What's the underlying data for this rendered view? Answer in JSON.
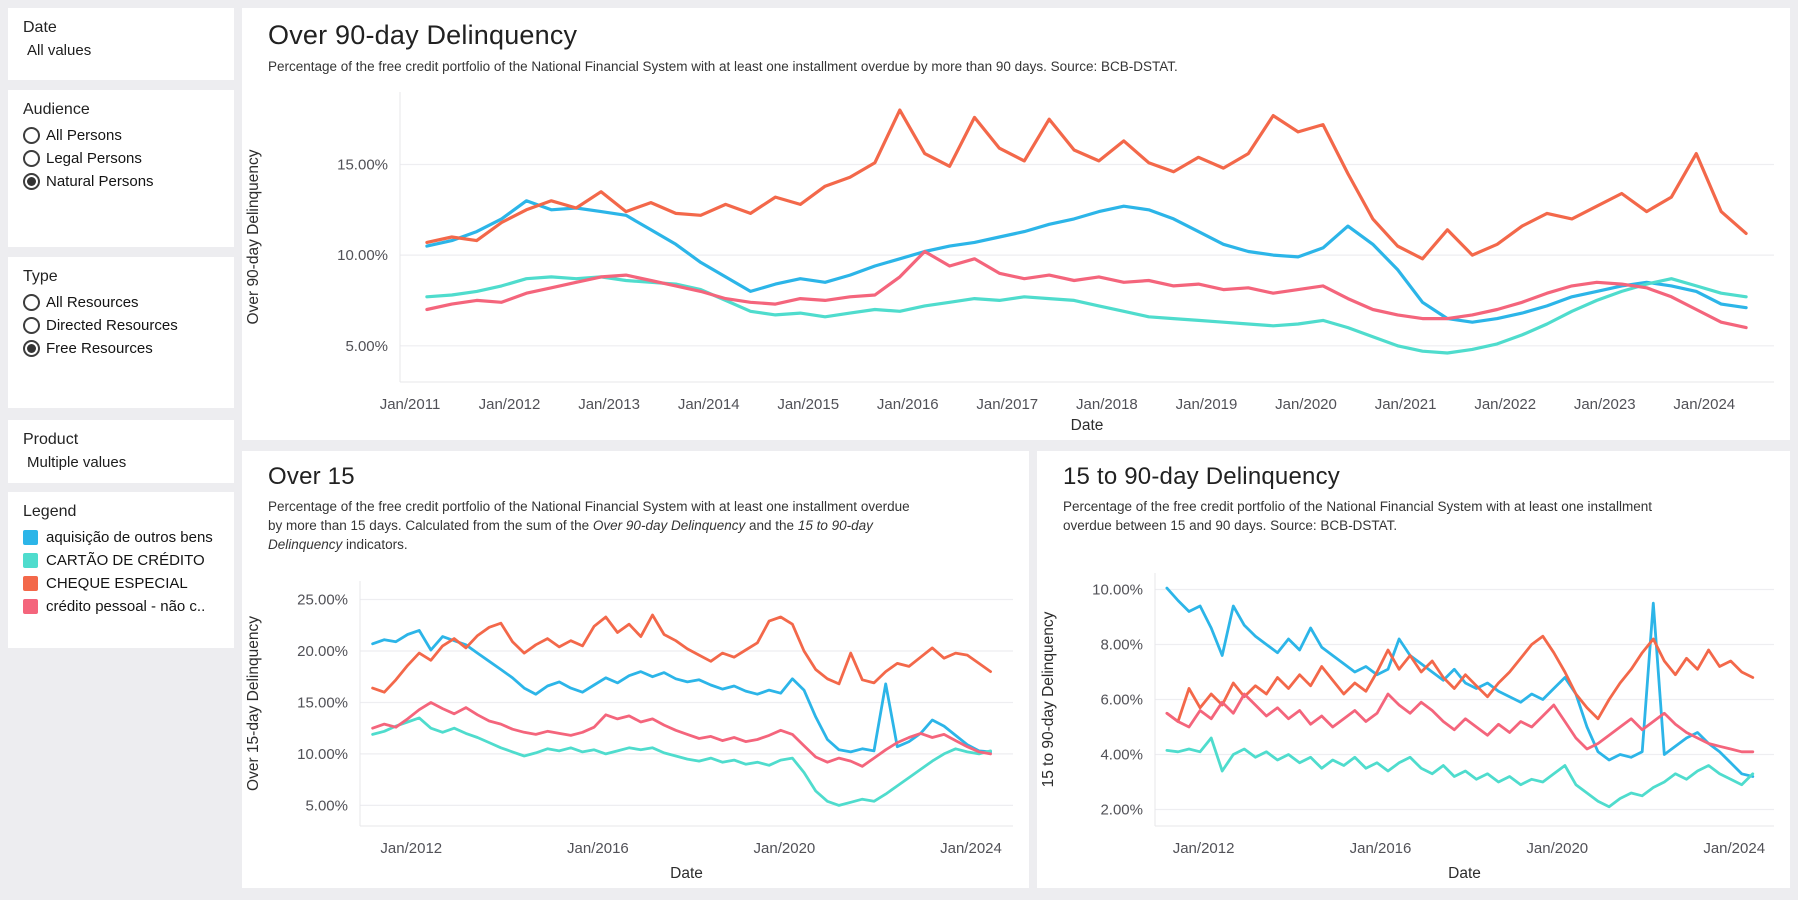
{
  "sidebar": {
    "date": {
      "title": "Date",
      "value": "All values"
    },
    "audience": {
      "title": "Audience",
      "options": [
        {
          "label": "All Persons",
          "selected": false
        },
        {
          "label": "Legal Persons",
          "selected": false
        },
        {
          "label": "Natural Persons",
          "selected": true
        }
      ]
    },
    "type": {
      "title": "Type",
      "options": [
        {
          "label": "All Resources",
          "selected": false
        },
        {
          "label": "Directed Resources",
          "selected": false
        },
        {
          "label": "Free Resources",
          "selected": true
        }
      ]
    },
    "product": {
      "title": "Product",
      "value": "Multiple values"
    },
    "legend": {
      "title": "Legend",
      "items": [
        {
          "label": "aquisição de outros bens",
          "color": "#2CB5E8"
        },
        {
          "label": "CARTÃO DE CRÉDITO",
          "color": "#4FDCCD"
        },
        {
          "label": "CHEQUE ESPECIAL",
          "color": "#F3684A"
        },
        {
          "label": "crédito pessoal -  não c..",
          "color": "#F4657C"
        }
      ]
    }
  },
  "panels": {
    "over90": {
      "title": "Over 90-day Delinquency",
      "subtitle": "Percentage of the free credit portfolio of the National Financial System with at least one installment overdue by more than 90 days. Source: BCB-DSTAT."
    },
    "over15": {
      "title": "Over 15",
      "subtitle_parts": [
        {
          "text": "Percentage of the free credit portfolio of the National Financial System with at least one installment overdue by more than 15 days. Calculated from the sum of the ",
          "italic": false
        },
        {
          "text": "Over 90-day Delinquency",
          "italic": true
        },
        {
          "text": " and the ",
          "italic": false
        },
        {
          "text": "15 to 90-day Delinquency",
          "italic": true
        },
        {
          "text": " indicators.",
          "italic": false
        }
      ]
    },
    "d1590": {
      "title": "15 to 90-day Delinquency",
      "subtitle": "Percentage of the free credit portfolio of the National Financial System with at least one installment overdue between 15 and 90 days. Source: BCB-DSTAT."
    }
  },
  "chart_data": [
    {
      "id": "over90",
      "type": "line",
      "title": "Over 90-day Delinquency",
      "xlabel": "Date",
      "ylabel": "Over 90-day Delinquency",
      "x_unit": "decimal_year_monthly_series",
      "x_start": 2011.17,
      "x_step": 0.25,
      "x_range": [
        2010.9,
        2024.7
      ],
      "y_range": [
        3.0,
        19.0
      ],
      "grid": "horizontal",
      "legend_position": "sidebar",
      "y_ticks": [
        {
          "v": 5,
          "label": "5.00%"
        },
        {
          "v": 10,
          "label": "10.00%"
        },
        {
          "v": 15,
          "label": "15.00%"
        }
      ],
      "x_ticks": [
        {
          "v": 2011,
          "label": "Jan/2011"
        },
        {
          "v": 2012,
          "label": "Jan/2012"
        },
        {
          "v": 2013,
          "label": "Jan/2013"
        },
        {
          "v": 2014,
          "label": "Jan/2014"
        },
        {
          "v": 2015,
          "label": "Jan/2015"
        },
        {
          "v": 2016,
          "label": "Jan/2016"
        },
        {
          "v": 2017,
          "label": "Jan/2017"
        },
        {
          "v": 2018,
          "label": "Jan/2018"
        },
        {
          "v": 2019,
          "label": "Jan/2019"
        },
        {
          "v": 2020,
          "label": "Jan/2020"
        },
        {
          "v": 2021,
          "label": "Jan/2021"
        },
        {
          "v": 2022,
          "label": "Jan/2022"
        },
        {
          "v": 2023,
          "label": "Jan/2023"
        },
        {
          "v": 2024,
          "label": "Jan/2024"
        }
      ],
      "series": [
        {
          "name": "aquisição de outros bens",
          "color": "#2CB5E8",
          "values": [
            10.5,
            10.8,
            11.3,
            12.0,
            13.0,
            12.5,
            12.6,
            12.4,
            12.2,
            11.4,
            10.6,
            9.6,
            8.8,
            8.0,
            8.4,
            8.7,
            8.5,
            8.9,
            9.4,
            9.8,
            10.2,
            10.5,
            10.7,
            11.0,
            11.3,
            11.7,
            12.0,
            12.4,
            12.7,
            12.5,
            12.0,
            11.3,
            10.6,
            10.2,
            10.0,
            9.9,
            10.4,
            11.6,
            10.6,
            9.2,
            7.4,
            6.5,
            6.3,
            6.5,
            6.8,
            7.2,
            7.7,
            8.0,
            8.3,
            8.5,
            8.3,
            8.0,
            7.3,
            7.1
          ]
        },
        {
          "name": "CARTÃO DE CRÉDITO",
          "color": "#4FDCCD",
          "values": [
            7.7,
            7.8,
            8.0,
            8.3,
            8.7,
            8.8,
            8.7,
            8.8,
            8.6,
            8.5,
            8.4,
            8.1,
            7.5,
            6.9,
            6.7,
            6.8,
            6.6,
            6.8,
            7.0,
            6.9,
            7.2,
            7.4,
            7.6,
            7.5,
            7.7,
            7.6,
            7.5,
            7.2,
            6.9,
            6.6,
            6.5,
            6.4,
            6.3,
            6.2,
            6.1,
            6.2,
            6.4,
            6.0,
            5.5,
            5.0,
            4.7,
            4.6,
            4.8,
            5.1,
            5.6,
            6.2,
            6.9,
            7.5,
            8.0,
            8.4,
            8.7,
            8.3,
            7.9,
            7.7
          ]
        },
        {
          "name": "CHEQUE ESPECIAL",
          "color": "#F3684A",
          "values": [
            10.7,
            11.0,
            10.8,
            11.8,
            12.5,
            13.0,
            12.6,
            13.5,
            12.4,
            12.9,
            12.3,
            12.2,
            12.8,
            12.3,
            13.2,
            12.8,
            13.8,
            14.3,
            15.1,
            18.0,
            15.6,
            14.9,
            17.6,
            15.9,
            15.2,
            17.5,
            15.8,
            15.2,
            16.3,
            15.1,
            14.6,
            15.4,
            14.8,
            15.6,
            17.7,
            16.8,
            17.2,
            14.5,
            12.0,
            10.5,
            9.8,
            11.4,
            10.0,
            10.6,
            11.6,
            12.3,
            12.0,
            12.7,
            13.4,
            12.4,
            13.2,
            15.6,
            12.4,
            11.2
          ]
        },
        {
          "name": "crédito pessoal -  não c..",
          "color": "#F4657C",
          "values": [
            7.0,
            7.3,
            7.5,
            7.4,
            7.9,
            8.2,
            8.5,
            8.8,
            8.9,
            8.6,
            8.3,
            8.0,
            7.6,
            7.4,
            7.3,
            7.6,
            7.5,
            7.7,
            7.8,
            8.8,
            10.2,
            9.4,
            9.8,
            9.0,
            8.7,
            8.9,
            8.6,
            8.8,
            8.5,
            8.6,
            8.3,
            8.4,
            8.1,
            8.2,
            7.9,
            8.1,
            8.3,
            7.6,
            7.0,
            6.7,
            6.5,
            6.5,
            6.7,
            7.0,
            7.4,
            7.9,
            8.3,
            8.5,
            8.4,
            8.2,
            7.7,
            7.0,
            6.3,
            6.0
          ]
        }
      ]
    },
    {
      "id": "over15",
      "type": "line",
      "title": "Over 15",
      "xlabel": "Date",
      "ylabel": "Over 15-day Delinquency",
      "x_unit": "decimal_year_monthly_series",
      "x_start": 2011.17,
      "x_step": 0.25,
      "x_range": [
        2010.9,
        2024.9
      ],
      "y_range": [
        3.0,
        26.8
      ],
      "grid": "horizontal",
      "legend_position": "sidebar",
      "y_ticks": [
        {
          "v": 5,
          "label": "5.00%"
        },
        {
          "v": 10,
          "label": "10.00%"
        },
        {
          "v": 15,
          "label": "15.00%"
        },
        {
          "v": 20,
          "label": "20.00%"
        },
        {
          "v": 25,
          "label": "25.00%"
        }
      ],
      "x_ticks": [
        {
          "v": 2012,
          "label": "Jan/2012"
        },
        {
          "v": 2016,
          "label": "Jan/2016"
        },
        {
          "v": 2020,
          "label": "Jan/2020"
        },
        {
          "v": 2024,
          "label": "Jan/2024"
        }
      ],
      "series": [
        {
          "name": "aquisição de outros bens",
          "color": "#2CB5E8",
          "values": [
            20.7,
            21.1,
            20.9,
            21.6,
            22.0,
            20.1,
            21.4,
            21.0,
            20.6,
            19.8,
            19.0,
            18.2,
            17.4,
            16.4,
            15.8,
            16.6,
            17.0,
            16.4,
            16.0,
            16.7,
            17.4,
            16.9,
            17.6,
            18.0,
            17.5,
            17.9,
            17.3,
            17.0,
            17.2,
            16.7,
            16.3,
            16.6,
            16.1,
            15.8,
            16.2,
            15.9,
            17.3,
            16.2,
            13.6,
            11.4,
            10.4,
            10.2,
            10.5,
            10.3,
            16.8,
            10.7,
            11.2,
            12.0,
            13.3,
            12.7,
            11.8,
            10.9,
            10.3,
            10.2
          ]
        },
        {
          "name": "CARTÃO DE CRÉDITO",
          "color": "#4FDCCD",
          "values": [
            11.9,
            12.2,
            12.7,
            13.1,
            13.5,
            12.5,
            12.1,
            12.5,
            12.0,
            11.6,
            11.1,
            10.6,
            10.2,
            9.8,
            10.1,
            10.5,
            10.3,
            10.6,
            10.2,
            10.4,
            10.0,
            10.3,
            10.6,
            10.4,
            10.6,
            10.1,
            9.8,
            9.5,
            9.3,
            9.6,
            9.2,
            9.4,
            9.0,
            9.2,
            8.9,
            9.4,
            9.6,
            8.2,
            6.4,
            5.4,
            5.0,
            5.3,
            5.6,
            5.4,
            6.1,
            6.9,
            7.7,
            8.5,
            9.3,
            10.0,
            10.5,
            10.2,
            10.0,
            10.3
          ]
        },
        {
          "name": "CHEQUE ESPECIAL",
          "color": "#F3684A",
          "values": [
            16.4,
            16.0,
            17.2,
            18.6,
            19.8,
            19.1,
            20.5,
            21.2,
            20.3,
            21.5,
            22.3,
            22.7,
            20.9,
            19.8,
            20.6,
            21.2,
            20.4,
            21.0,
            20.5,
            22.4,
            23.3,
            21.8,
            22.6,
            21.4,
            23.5,
            21.6,
            21.0,
            20.2,
            19.6,
            19.0,
            19.8,
            19.4,
            20.1,
            20.8,
            22.9,
            23.3,
            22.6,
            20.0,
            18.2,
            17.3,
            16.8,
            19.8,
            17.2,
            16.9,
            18.0,
            18.8,
            18.5,
            19.4,
            20.3,
            19.3,
            19.8,
            19.6,
            18.8,
            18.0
          ]
        },
        {
          "name": "crédito pessoal -  não c..",
          "color": "#F4657C",
          "values": [
            12.5,
            12.9,
            12.6,
            13.4,
            14.3,
            15.0,
            14.4,
            13.9,
            14.5,
            13.8,
            13.2,
            12.9,
            12.4,
            12.1,
            11.9,
            12.2,
            12.0,
            11.8,
            12.1,
            12.6,
            13.8,
            13.4,
            13.7,
            13.1,
            13.4,
            12.8,
            12.3,
            11.9,
            11.5,
            11.7,
            11.3,
            11.6,
            11.2,
            11.4,
            11.8,
            12.3,
            11.9,
            10.8,
            9.7,
            9.2,
            9.6,
            9.3,
            8.8,
            9.6,
            10.4,
            11.1,
            11.6,
            12.0,
            11.6,
            11.9,
            11.3,
            10.7,
            10.2,
            10.0
          ]
        }
      ]
    },
    {
      "id": "d1590",
      "type": "line",
      "title": "15 to 90-day Delinquency",
      "xlabel": "Date",
      "ylabel": "15 to 90-day Delinquency",
      "x_unit": "decimal_year_monthly_series",
      "x_start": 2011.17,
      "x_step": 0.25,
      "x_range": [
        2010.9,
        2024.9
      ],
      "y_range": [
        1.4,
        10.6
      ],
      "grid": "horizontal",
      "legend_position": "sidebar",
      "y_ticks": [
        {
          "v": 2,
          "label": "2.00%"
        },
        {
          "v": 4,
          "label": "4.00%"
        },
        {
          "v": 6,
          "label": "6.00%"
        },
        {
          "v": 8,
          "label": "8.00%"
        },
        {
          "v": 10,
          "label": "10.00%"
        }
      ],
      "x_ticks": [
        {
          "v": 2012,
          "label": "Jan/2012"
        },
        {
          "v": 2016,
          "label": "Jan/2016"
        },
        {
          "v": 2020,
          "label": "Jan/2020"
        },
        {
          "v": 2024,
          "label": "Jan/2024"
        }
      ],
      "series": [
        {
          "name": "aquisição de outros bens",
          "color": "#2CB5E8",
          "values": [
            10.05,
            9.6,
            9.2,
            9.4,
            8.6,
            7.6,
            9.4,
            8.7,
            8.3,
            8.0,
            7.7,
            8.2,
            7.8,
            8.6,
            7.9,
            7.6,
            7.3,
            7.0,
            7.2,
            6.9,
            7.1,
            8.2,
            7.6,
            7.3,
            7.0,
            6.7,
            7.1,
            6.6,
            6.4,
            6.6,
            6.3,
            6.1,
            5.9,
            6.2,
            6.0,
            6.4,
            6.8,
            6.2,
            5.0,
            4.1,
            3.8,
            4.0,
            3.9,
            4.1,
            9.5,
            4.0,
            4.3,
            4.6,
            4.8,
            4.4,
            4.1,
            3.7,
            3.3,
            3.2
          ]
        },
        {
          "name": "CARTÃO DE CRÉDITO",
          "color": "#4FDCCD",
          "values": [
            4.15,
            4.1,
            4.2,
            4.1,
            4.6,
            3.4,
            4.0,
            4.2,
            3.9,
            4.1,
            3.8,
            4.0,
            3.7,
            3.9,
            3.5,
            3.8,
            3.6,
            3.9,
            3.5,
            3.7,
            3.4,
            3.7,
            3.9,
            3.5,
            3.3,
            3.6,
            3.2,
            3.4,
            3.1,
            3.3,
            3.0,
            3.2,
            2.9,
            3.1,
            3.0,
            3.3,
            3.6,
            2.9,
            2.6,
            2.3,
            2.1,
            2.4,
            2.6,
            2.5,
            2.8,
            3.0,
            3.3,
            3.1,
            3.4,
            3.6,
            3.3,
            3.1,
            2.9,
            3.3
          ]
        },
        {
          "name": "CHEQUE ESPECIAL",
          "color": "#F3684A",
          "values": [
            5.5,
            5.2,
            6.4,
            5.7,
            6.2,
            5.8,
            6.6,
            6.1,
            6.5,
            6.2,
            6.8,
            6.4,
            6.9,
            6.5,
            7.2,
            6.7,
            6.2,
            6.6,
            6.3,
            7.0,
            7.8,
            7.1,
            7.6,
            7.0,
            7.4,
            6.8,
            6.4,
            6.9,
            6.5,
            6.1,
            6.6,
            7.0,
            7.5,
            8.0,
            8.3,
            7.7,
            7.0,
            6.2,
            5.7,
            5.3,
            6.0,
            6.6,
            7.1,
            7.7,
            8.2,
            7.4,
            6.9,
            7.5,
            7.1,
            7.8,
            7.2,
            7.4,
            7.0,
            6.8
          ]
        },
        {
          "name": "crédito pessoal -  não c..",
          "color": "#F4657C",
          "values": [
            5.5,
            5.2,
            5.0,
            5.6,
            5.3,
            5.9,
            5.5,
            6.2,
            5.8,
            5.4,
            5.7,
            5.3,
            5.6,
            5.1,
            5.4,
            5.0,
            5.3,
            5.6,
            5.2,
            5.5,
            6.2,
            5.8,
            5.5,
            5.9,
            5.6,
            5.2,
            4.9,
            5.3,
            5.0,
            4.7,
            5.1,
            4.8,
            5.2,
            5.0,
            5.4,
            5.8,
            5.2,
            4.6,
            4.2,
            4.4,
            4.7,
            5.0,
            5.3,
            4.9,
            5.2,
            5.5,
            5.1,
            4.8,
            4.6,
            4.4,
            4.3,
            4.2,
            4.1,
            4.1
          ]
        }
      ]
    }
  ]
}
